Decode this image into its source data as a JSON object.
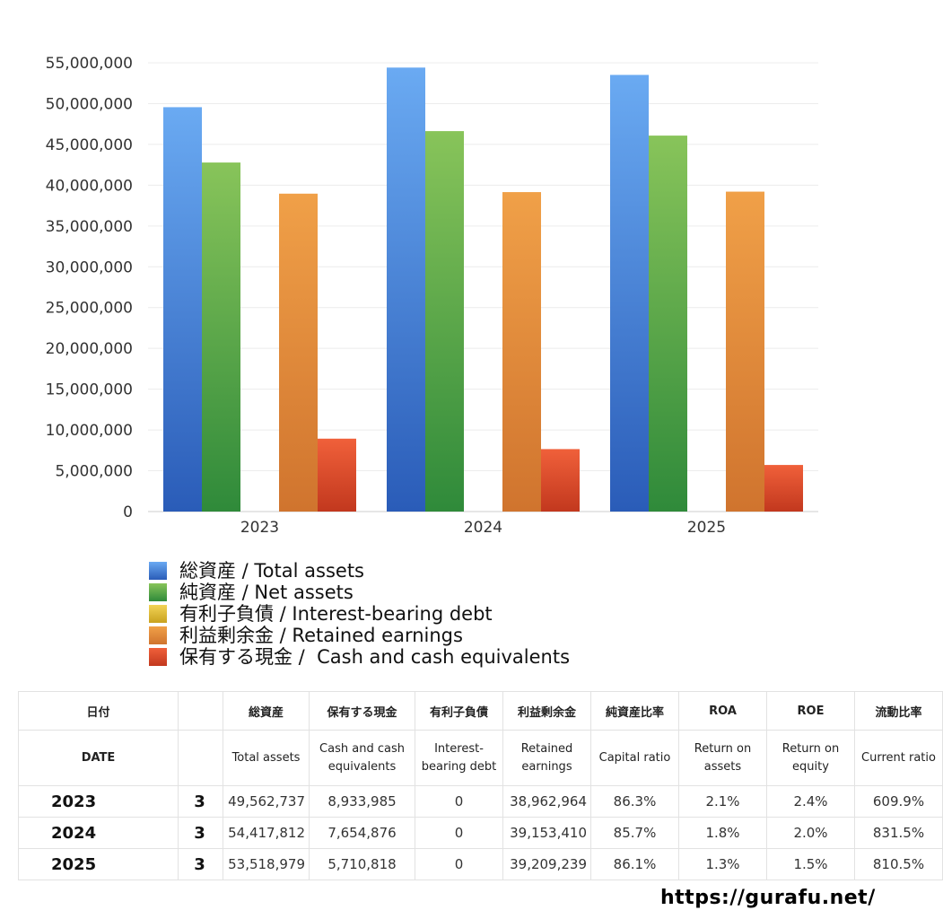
{
  "chart_data": {
    "type": "bar",
    "categories": [
      "2023",
      "2024",
      "2025"
    ],
    "series": [
      {
        "name": "総資産 / Total assets",
        "values": [
          49562737,
          54417812,
          53518979
        ],
        "color_top": "#6aaaf2",
        "color_bottom": "#2a5cb8"
      },
      {
        "name": "純資産 / Net assets",
        "values": [
          42780000,
          46630000,
          46080000
        ],
        "color_top": "#88c45a",
        "color_bottom": "#2f8a3a"
      },
      {
        "name": "有利子負債 / Interest-bearing debt",
        "values": [
          0,
          0,
          0
        ],
        "color_top": "#f2d356",
        "color_bottom": "#c9a21f"
      },
      {
        "name": "利益剰余金 / Retained earnings",
        "values": [
          38962964,
          39153410,
          39209239
        ],
        "color_top": "#f0a048",
        "color_bottom": "#d0742e"
      },
      {
        "name": "保有する現金 /  Cash and cash equivalents",
        "values": [
          8933985,
          7654876,
          5710818
        ],
        "color_top": "#f0603a",
        "color_bottom": "#c2381e"
      }
    ],
    "yticks": [
      "0",
      "5,000,000",
      "10,000,000",
      "15,000,000",
      "20,000,000",
      "25,000,000",
      "30,000,000",
      "35,000,000",
      "40,000,000",
      "45,000,000",
      "50,000,000",
      "55,000,000"
    ],
    "ylim": [
      0,
      55000000
    ],
    "title": "",
    "xlabel": "",
    "ylabel": "",
    "grid": true,
    "legend": "bottom-left"
  },
  "table": {
    "header_jp": {
      "date": "日付",
      "month": "",
      "total_assets": "総資産",
      "cash": "保有する現金",
      "debt": "有利子負債",
      "retained": "利益剰余金",
      "capital_ratio": "純資産比率",
      "roa": "ROA",
      "roe": "ROE",
      "current_ratio": "流動比率"
    },
    "header_en": {
      "date": "DATE",
      "month": "",
      "total_assets": "Total assets",
      "cash": "Cash and cash equivalents",
      "debt": "Interest-bearing debt",
      "retained": "Retained earnings",
      "capital_ratio": "Capital ratio",
      "roa": "Return on assets",
      "roe": "Return on equity",
      "current_ratio": "Current ratio"
    },
    "rows": [
      {
        "year": "2023",
        "month": "3",
        "total_assets": "49,562,737",
        "cash": "8,933,985",
        "debt": "0",
        "retained": "38,962,964",
        "capital_ratio": "86.3%",
        "roa": "2.1%",
        "roe": "2.4%",
        "current_ratio": "609.9%"
      },
      {
        "year": "2024",
        "month": "3",
        "total_assets": "54,417,812",
        "cash": "7,654,876",
        "debt": "0",
        "retained": "39,153,410",
        "capital_ratio": "85.7%",
        "roa": "1.8%",
        "roe": "2.0%",
        "current_ratio": "831.5%"
      },
      {
        "year": "2025",
        "month": "3",
        "total_assets": "53,518,979",
        "cash": "5,710,818",
        "debt": "0",
        "retained": "39,209,239",
        "capital_ratio": "86.1%",
        "roa": "1.3%",
        "roe": "1.5%",
        "current_ratio": "810.5%"
      }
    ]
  },
  "footer": {
    "url": "https://gurafu.net/"
  }
}
